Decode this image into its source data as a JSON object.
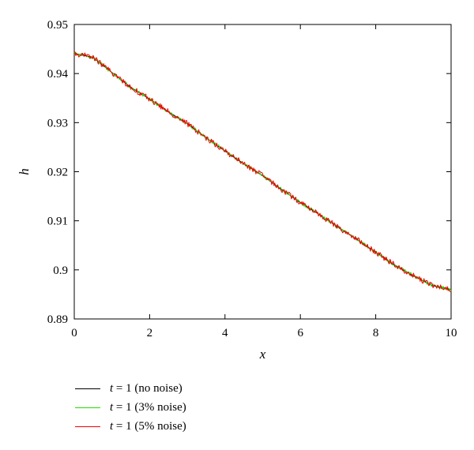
{
  "chart_data": {
    "type": "line",
    "title": "",
    "xlabel": "x",
    "ylabel": "h",
    "xlim": [
      0,
      10
    ],
    "ylim": [
      0.89,
      0.95
    ],
    "x_ticks": [
      "0",
      "2",
      "4",
      "6",
      "8",
      "10"
    ],
    "y_ticks": [
      "0.89",
      "0.9",
      "0.91",
      "0.92",
      "0.93",
      "0.94",
      "0.95"
    ],
    "grid": false,
    "legend_position": "bottom-left, outside plot",
    "series": [
      {
        "name": "t = 1 (no noise)",
        "color": "#000000",
        "noise_percent": 0,
        "x": [
          0,
          0.5,
          1,
          1.5,
          2,
          2.5,
          3,
          3.5,
          4,
          4.5,
          5,
          5.5,
          6,
          6.5,
          7,
          7.5,
          8,
          8.5,
          9,
          9.5,
          10
        ],
        "y": [
          0.9441,
          0.9433,
          0.9402,
          0.9372,
          0.9348,
          0.9322,
          0.9298,
          0.9269,
          0.9242,
          0.9216,
          0.9192,
          0.9164,
          0.9137,
          0.9113,
          0.9087,
          0.9062,
          0.9036,
          0.901,
          0.8988,
          0.8968,
          0.896
        ]
      },
      {
        "name": "t = 1 (3% noise)",
        "color": "#22dd00",
        "noise_percent": 3,
        "x": [
          0,
          0.5,
          1,
          1.5,
          2,
          2.5,
          3,
          3.5,
          4,
          4.5,
          5,
          5.5,
          6,
          6.5,
          7,
          7.5,
          8,
          8.5,
          9,
          9.5,
          10
        ],
        "y": [
          0.9441,
          0.9433,
          0.9402,
          0.9372,
          0.9348,
          0.9322,
          0.9298,
          0.9269,
          0.9242,
          0.9216,
          0.9192,
          0.9164,
          0.9137,
          0.9113,
          0.9087,
          0.9062,
          0.9036,
          0.901,
          0.8988,
          0.8968,
          0.896
        ]
      },
      {
        "name": "t = 1 (5% noise)",
        "color": "#ee0000",
        "noise_percent": 5,
        "x": [
          0,
          0.5,
          1,
          1.5,
          2,
          2.5,
          3,
          3.5,
          4,
          4.5,
          5,
          5.5,
          6,
          6.5,
          7,
          7.5,
          8,
          8.5,
          9,
          9.5,
          10
        ],
        "y": [
          0.9441,
          0.9433,
          0.9402,
          0.9372,
          0.9348,
          0.9322,
          0.9298,
          0.9269,
          0.9242,
          0.9216,
          0.9192,
          0.9164,
          0.9137,
          0.9113,
          0.9087,
          0.9062,
          0.9036,
          0.901,
          0.8988,
          0.8968,
          0.896
        ]
      }
    ]
  },
  "legend": {
    "items": [
      {
        "prefix": "t",
        "text": " = 1 (no noise)",
        "color": "#000000"
      },
      {
        "prefix": "t",
        "text": " = 1 (3% noise)",
        "color": "#22dd00"
      },
      {
        "prefix": "t",
        "text": " = 1 (5% noise)",
        "color": "#ee0000"
      }
    ]
  }
}
